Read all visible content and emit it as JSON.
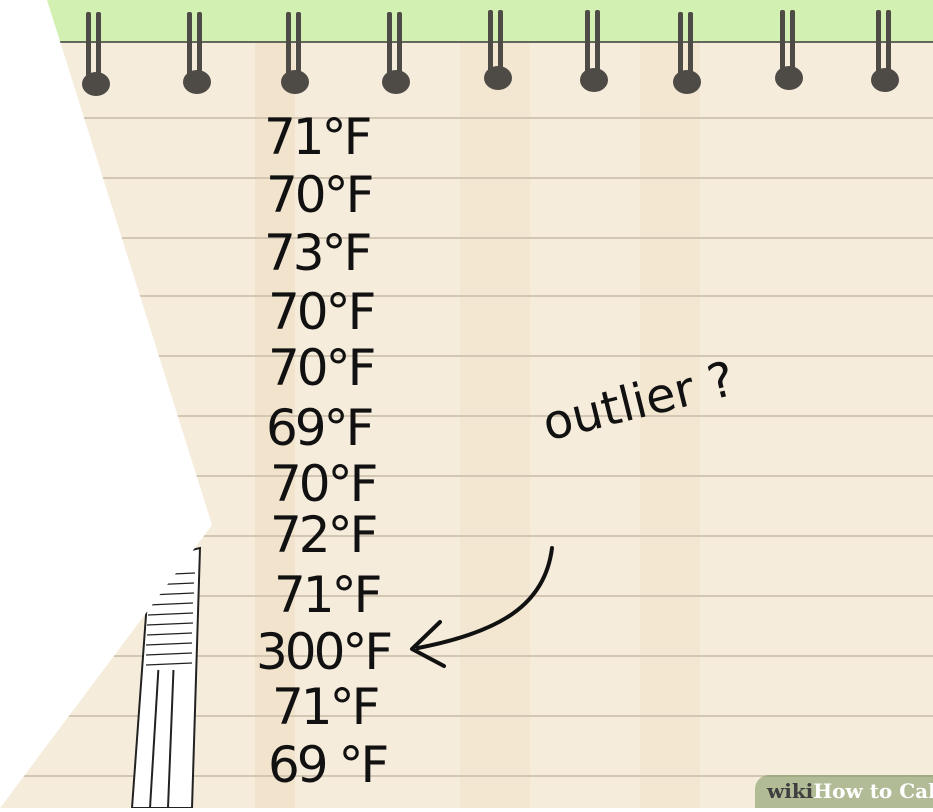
{
  "notepad": {
    "readings": [
      "71°F",
      "70°F",
      "73°F",
      "70°F",
      "70°F",
      "69°F",
      "70°F",
      "72°F",
      "71°F",
      "300°F",
      "71°F",
      "69 °F"
    ],
    "annotation": "outlier ?"
  },
  "watermark": {
    "brand": "wiki",
    "title": "How to Calc"
  },
  "colors": {
    "paper": "#f6ecdc",
    "paper_stripe": "#f1e3cc",
    "ruled_line": "#d3c7b4",
    "header_green": "#d3f0b3",
    "ink": "#111111",
    "ring": "#4e4a46"
  }
}
